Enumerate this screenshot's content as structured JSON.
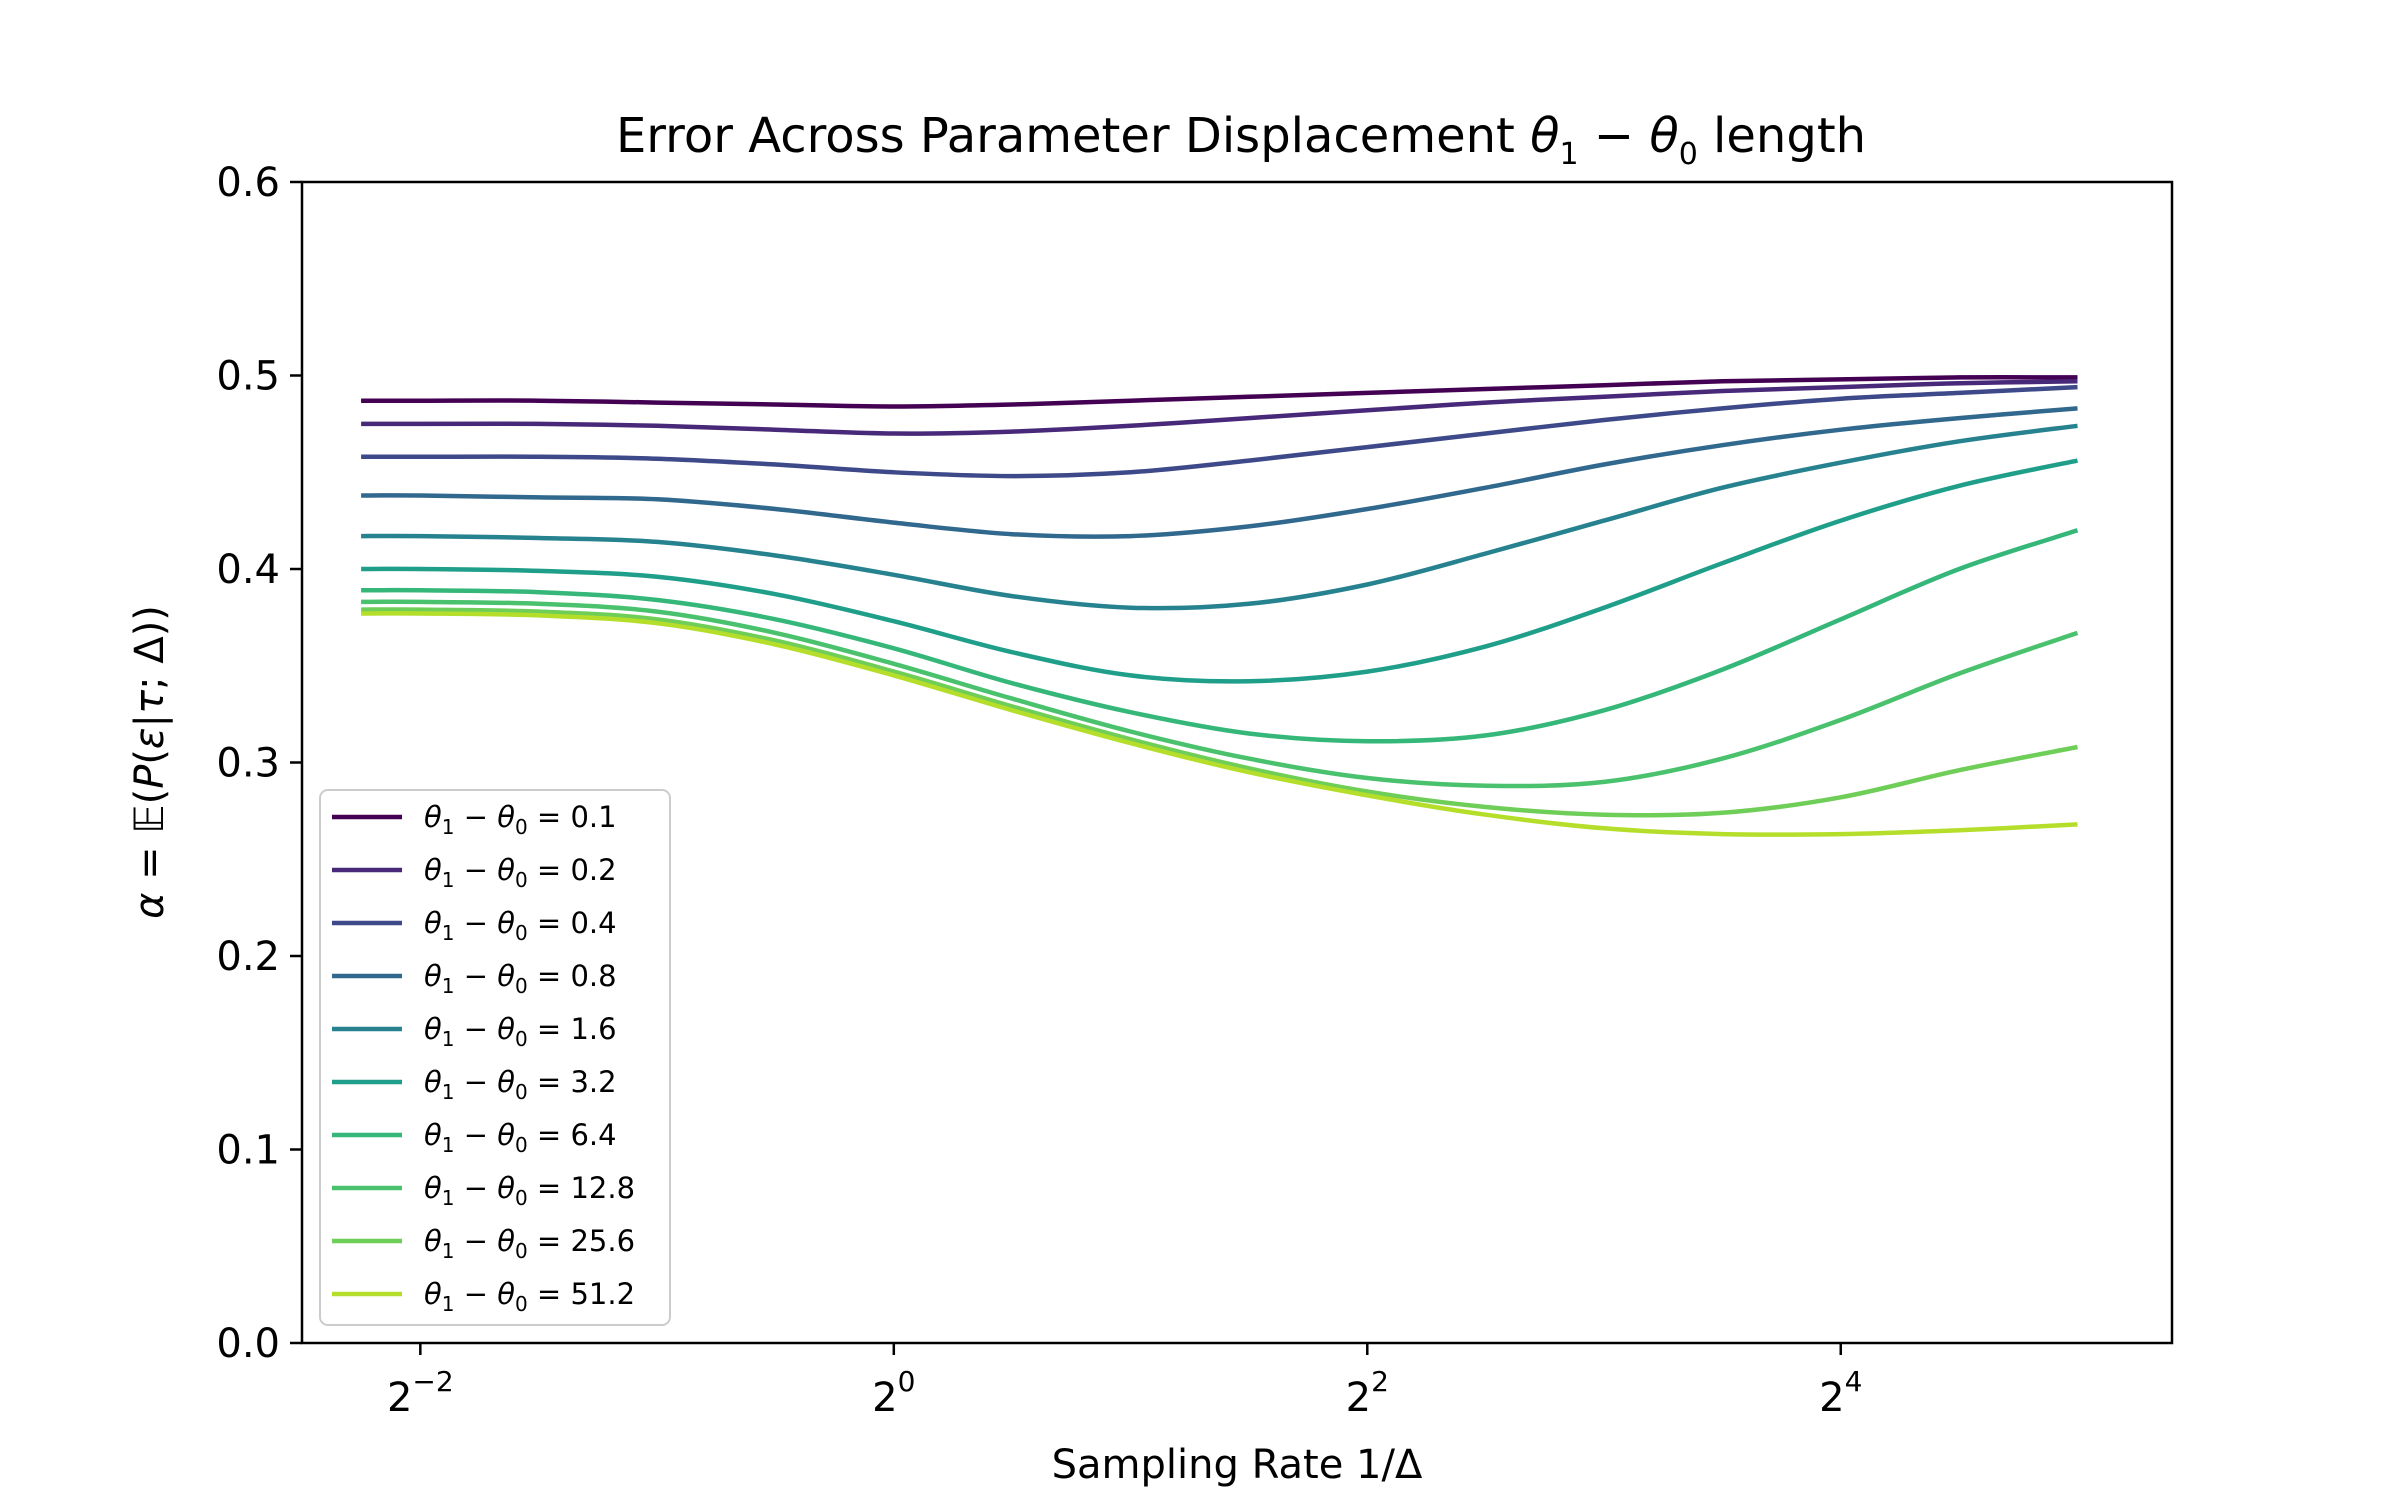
{
  "chart_data": {
    "type": "line",
    "title": "Error Across Parameter Displacement θ₁ − θ₀ length",
    "xlabel": "Sampling Rate 1/Δ",
    "ylabel": "α = 𝔼(P(ε|τ; Δ))",
    "xscale": "log2",
    "xlim": [
      0.1768,
      42.2
    ],
    "ylim": [
      0.0,
      0.6
    ],
    "x_ticks": [
      0.25,
      1,
      4,
      16
    ],
    "x_tick_labels": [
      {
        "base": "2",
        "exp": "−2"
      },
      {
        "base": "2",
        "exp": "0"
      },
      {
        "base": "2",
        "exp": "2"
      },
      {
        "base": "2",
        "exp": "4"
      }
    ],
    "y_ticks": [
      0.0,
      0.1,
      0.2,
      0.3,
      0.4,
      0.5,
      0.6
    ],
    "y_tick_labels": [
      "0.0",
      "0.1",
      "0.2",
      "0.3",
      "0.4",
      "0.5",
      "0.6"
    ],
    "grid": false,
    "legend_position": "lower-left",
    "x": [
      0.2102,
      0.25,
      0.354,
      0.5,
      0.707,
      1.0,
      1.414,
      2.0,
      2.828,
      4.0,
      5.657,
      8.0,
      11.31,
      16.0,
      22.63,
      32.0
    ],
    "series": [
      {
        "name": "θ₁ − θ₀ = 0.1",
        "color": "#440154",
        "values": [
          0.487,
          0.487,
          0.487,
          0.486,
          0.485,
          0.484,
          0.485,
          0.487,
          0.489,
          0.491,
          0.493,
          0.495,
          0.497,
          0.498,
          0.499,
          0.499
        ]
      },
      {
        "name": "θ₁ − θ₀ = 0.2",
        "color": "#482878",
        "values": [
          0.475,
          0.475,
          0.475,
          0.474,
          0.472,
          0.47,
          0.471,
          0.474,
          0.478,
          0.482,
          0.486,
          0.489,
          0.492,
          0.494,
          0.496,
          0.497
        ]
      },
      {
        "name": "θ₁ − θ₀ = 0.4",
        "color": "#3e4989",
        "values": [
          0.458,
          0.458,
          0.458,
          0.457,
          0.454,
          0.45,
          0.448,
          0.45,
          0.456,
          0.463,
          0.47,
          0.477,
          0.483,
          0.488,
          0.491,
          0.494
        ]
      },
      {
        "name": "θ₁ − θ₀ = 0.8",
        "color": "#31688e",
        "values": [
          0.438,
          0.438,
          0.437,
          0.436,
          0.431,
          0.424,
          0.418,
          0.417,
          0.422,
          0.431,
          0.442,
          0.454,
          0.464,
          0.472,
          0.478,
          0.483
        ]
      },
      {
        "name": "θ₁ − θ₀ = 1.6",
        "color": "#26828e",
        "values": [
          0.417,
          0.417,
          0.416,
          0.414,
          0.407,
          0.397,
          0.386,
          0.38,
          0.382,
          0.392,
          0.408,
          0.425,
          0.442,
          0.455,
          0.466,
          0.474
        ]
      },
      {
        "name": "θ₁ − θ₀ = 3.2",
        "color": "#1f9e89",
        "values": [
          0.4,
          0.4,
          0.399,
          0.396,
          0.387,
          0.373,
          0.357,
          0.345,
          0.342,
          0.347,
          0.36,
          0.38,
          0.403,
          0.425,
          0.443,
          0.456
        ]
      },
      {
        "name": "θ₁ − θ₀ = 6.4",
        "color": "#35b779",
        "values": [
          0.389,
          0.389,
          0.388,
          0.384,
          0.374,
          0.359,
          0.341,
          0.326,
          0.315,
          0.311,
          0.314,
          0.327,
          0.348,
          0.374,
          0.4,
          0.42
        ]
      },
      {
        "name": "θ₁ − θ₀ = 12.8",
        "color": "#4ac16d",
        "values": [
          0.383,
          0.383,
          0.382,
          0.378,
          0.367,
          0.351,
          0.333,
          0.316,
          0.302,
          0.292,
          0.288,
          0.29,
          0.302,
          0.322,
          0.346,
          0.367
        ]
      },
      {
        "name": "θ₁ − θ₀ = 25.6",
        "color": "#6ece58",
        "values": [
          0.379,
          0.379,
          0.378,
          0.374,
          0.363,
          0.347,
          0.329,
          0.312,
          0.297,
          0.285,
          0.277,
          0.273,
          0.274,
          0.282,
          0.296,
          0.308
        ]
      },
      {
        "name": "θ₁ − θ₀ = 51.2",
        "color": "#b5de2b",
        "values": [
          0.377,
          0.377,
          0.376,
          0.372,
          0.361,
          0.345,
          0.327,
          0.31,
          0.295,
          0.283,
          0.273,
          0.266,
          0.263,
          0.263,
          0.265,
          0.268
        ]
      }
    ]
  }
}
